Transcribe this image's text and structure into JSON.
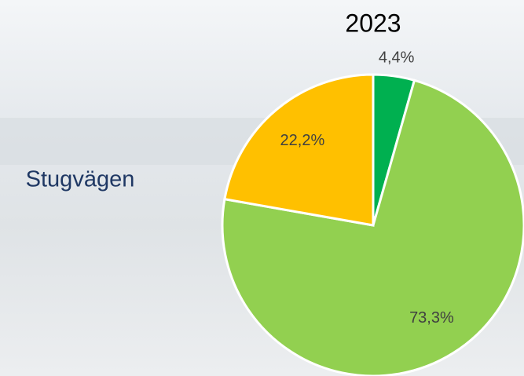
{
  "chart_data": {
    "type": "pie",
    "title": "2023",
    "annotations": [
      "Stugvägen"
    ],
    "values": [
      4.4,
      73.3,
      22.2
    ],
    "value_labels": [
      "4,4%",
      "73,3%",
      "22,2%"
    ],
    "colors": [
      "#00b050",
      "#92d050",
      "#ffc000"
    ]
  }
}
